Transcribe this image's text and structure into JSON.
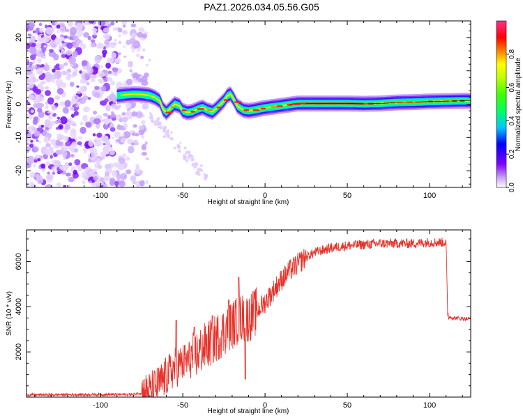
{
  "title": "PAZ1.2026.034.05.56.G05",
  "chart_data": [
    {
      "type": "heatmap",
      "xlabel": "Height of straight line (km)",
      "ylabel": "Frequency (Hz)",
      "xlim": [
        -145,
        125
      ],
      "ylim": [
        -25,
        25
      ],
      "xticks": [
        -100,
        -50,
        0,
        50,
        100
      ],
      "yticks": [
        -20,
        -10,
        0,
        10,
        20
      ],
      "xticks_major": [
        -100,
        -50,
        0,
        50,
        100
      ],
      "xtick_labels": [
        "-100",
        "-50",
        "0",
        "50",
        "100"
      ],
      "ytick_labels": [
        "-20",
        "-10",
        "0",
        "10",
        "20"
      ],
      "ridge": {
        "x": [
          -90,
          -85,
          -80,
          -75,
          -70,
          -67,
          -64,
          -62,
          -60,
          -58,
          -55,
          -52,
          -50,
          -47,
          -44,
          -41,
          -38,
          -35,
          -32,
          -30,
          -28,
          -25,
          -23,
          -21,
          -19,
          -17,
          -15,
          -13,
          -10,
          -7,
          -4,
          -1,
          2,
          5,
          8,
          11,
          14,
          17,
          20,
          30,
          40,
          50,
          60,
          70,
          80,
          90,
          100,
          110,
          120,
          125
        ],
        "freq": [
          2.5,
          2.8,
          3.0,
          2.9,
          2.6,
          2.0,
          1.0,
          -1.5,
          -2.5,
          -1.5,
          0.0,
          -0.5,
          -2.0,
          -2.5,
          -2.2,
          -1.5,
          -1.0,
          -1.8,
          -2.3,
          -1.5,
          -0.5,
          1.0,
          2.5,
          3.0,
          1.5,
          -0.5,
          -1.2,
          -1.8,
          -2.0,
          -1.8,
          -1.5,
          -1.2,
          -1.0,
          -0.8,
          -0.6,
          -0.4,
          -0.2,
          0.0,
          0.2,
          0.2,
          0.2,
          0.2,
          0.1,
          0.2,
          0.5,
          0.6,
          0.8,
          0.9,
          1.0,
          1.0
        ]
      },
      "noise_region_x": [
        -145,
        -70
      ]
    },
    {
      "type": "line",
      "xlabel": "Height of straight line (km)",
      "ylabel": "SNR (10 * v/v)",
      "xlim": [
        -145,
        125
      ],
      "ylim": [
        0,
        7400
      ],
      "xticks": [
        -100,
        -50,
        0,
        50,
        100
      ],
      "yticks": [
        2000,
        4000,
        6000
      ],
      "xtick_labels": [
        "-100",
        "-50",
        "0",
        "50",
        "100"
      ],
      "ytick_labels": [
        "2000",
        "4000",
        "6000"
      ],
      "color": "#e8322a",
      "series_outline": {
        "x": [
          -145,
          -80,
          -70,
          -65,
          -60,
          -55,
          -52,
          -50,
          -45,
          -40,
          -35,
          -30,
          -25,
          -20,
          -15,
          -10,
          -5,
          0,
          5,
          10,
          15,
          20,
          25,
          30,
          35,
          40,
          50,
          60,
          70,
          80,
          90,
          100,
          110,
          111,
          112,
          115,
          120,
          125
        ],
        "y": [
          100,
          120,
          250,
          500,
          900,
          1300,
          1400,
          1500,
          1700,
          2000,
          2300,
          2600,
          2900,
          3200,
          3500,
          3500,
          3800,
          4200,
          4700,
          5200,
          5600,
          5900,
          6200,
          6400,
          6500,
          6600,
          6700,
          6750,
          6800,
          6800,
          6800,
          6850,
          6850,
          3700,
          3550,
          3500,
          3480,
          3450
        ]
      },
      "spikes": [
        {
          "x": -54,
          "y": 3400
        },
        {
          "x": -43,
          "y": 3100
        },
        {
          "x": -32,
          "y": 3600
        },
        {
          "x": -22,
          "y": 4300
        },
        {
          "x": -16,
          "y": 5300
        },
        {
          "x": -12,
          "y": 800
        }
      ]
    }
  ],
  "colorbar": {
    "label": "Normalized spectral amplitude",
    "ticks": [
      "0.0",
      "0.2",
      "0.4",
      "0.6",
      "0.8"
    ],
    "tick_values": [
      0.0,
      0.2,
      0.4,
      0.6,
      0.8
    ],
    "range": [
      0,
      1
    ],
    "colors": [
      "#ffffff",
      "#c8a0ff",
      "#8000ff",
      "#0000ff",
      "#00e0ff",
      "#00ff40",
      "#a0ff00",
      "#ffff00",
      "#ff8000",
      "#ff0000",
      "#ff0080",
      "#ff40a0"
    ]
  }
}
